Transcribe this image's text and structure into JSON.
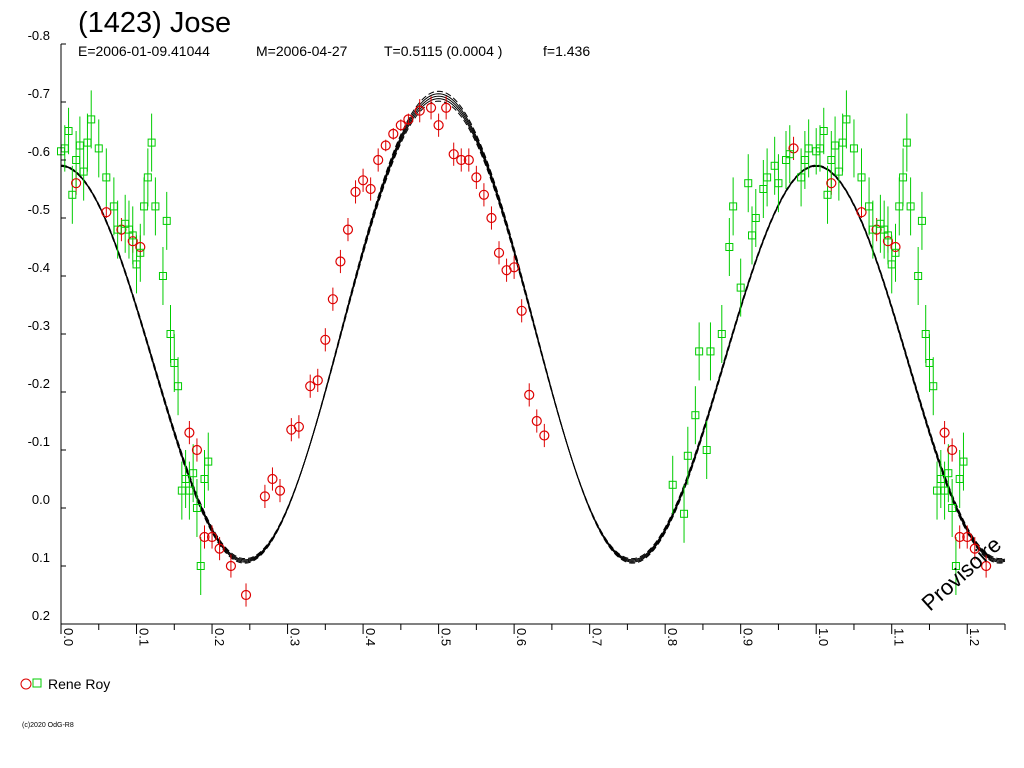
{
  "chart_data": {
    "type": "scatter",
    "title": "(1423) Jose",
    "params": {
      "epoch": "E=2006-01-09.41044",
      "mid": "M=2006-04-27",
      "period": "T=0.5115 (0.0004 )",
      "f": "f=1.436"
    },
    "xlabel": "",
    "ylabel": "",
    "xlim": [
      0.0,
      1.25
    ],
    "ylim": [
      -0.8,
      0.2
    ],
    "y_inverted": true,
    "x_ticks": [
      "0.0",
      "0.1",
      "0.2",
      "0.3",
      "0.4",
      "0.5",
      "0.6",
      "0.7",
      "0.8",
      "0.9",
      "1.0",
      "1.1",
      "1.2"
    ],
    "y_ticks": [
      "-0.8",
      "-0.7",
      "-0.6",
      "-0.5",
      "-0.4",
      "-0.3",
      "-0.2",
      "-0.1",
      "0.0",
      "0.1",
      "0.2"
    ],
    "grid": false,
    "legend_position": "bottom-left",
    "legend_label": "Rene Roy",
    "watermark": "Provisoire",
    "copyright": "(c)2020 OdG-R8",
    "colors": {
      "red_series": "#dd0000",
      "green_series": "#00cc00",
      "fit": "#000000"
    },
    "fit_curve": {
      "mean": -0.28,
      "h1": {
        "amplitude": 0.06,
        "phase_deg": 0
      },
      "h2": {
        "amplitude": 0.37,
        "phase_deg": 180
      },
      "bands": [
        -0.01,
        -0.005,
        0.005,
        0.01
      ]
    },
    "series": [
      {
        "name": "Rene Roy",
        "marker": "circle",
        "color": "#dd0000",
        "points": [
          [
            0.02,
            -0.56,
            0.02
          ],
          [
            0.06,
            -0.51,
            0.01
          ],
          [
            0.08,
            -0.48,
            0.02
          ],
          [
            0.095,
            -0.46,
            0.02
          ],
          [
            0.105,
            -0.45,
            0.02
          ],
          [
            0.17,
            -0.13,
            0.02
          ],
          [
            0.18,
            -0.1,
            0.02
          ],
          [
            0.19,
            0.05,
            0.02
          ],
          [
            0.2,
            0.05,
            0.02
          ],
          [
            0.21,
            0.07,
            0.02
          ],
          [
            0.225,
            0.1,
            0.02
          ],
          [
            0.245,
            0.15,
            0.02
          ],
          [
            0.27,
            -0.02,
            0.02
          ],
          [
            0.28,
            -0.05,
            0.02
          ],
          [
            0.29,
            -0.03,
            0.02
          ],
          [
            0.305,
            -0.135,
            0.02
          ],
          [
            0.315,
            -0.14,
            0.02
          ],
          [
            0.33,
            -0.21,
            0.02
          ],
          [
            0.34,
            -0.22,
            0.02
          ],
          [
            0.35,
            -0.29,
            0.02
          ],
          [
            0.36,
            -0.36,
            0.02
          ],
          [
            0.37,
            -0.425,
            0.02
          ],
          [
            0.38,
            -0.48,
            0.02
          ],
          [
            0.39,
            -0.545,
            0.02
          ],
          [
            0.4,
            -0.565,
            0.02
          ],
          [
            0.41,
            -0.55,
            0.02
          ],
          [
            0.42,
            -0.6,
            0.02
          ],
          [
            0.43,
            -0.625,
            0.01
          ],
          [
            0.44,
            -0.645,
            0.01
          ],
          [
            0.45,
            -0.66,
            0.01
          ],
          [
            0.46,
            -0.67,
            0.01
          ],
          [
            0.475,
            -0.685,
            0.02
          ],
          [
            0.49,
            -0.69,
            0.02
          ],
          [
            0.5,
            -0.66,
            0.02
          ],
          [
            0.51,
            -0.69,
            0.02
          ],
          [
            0.52,
            -0.61,
            0.02
          ],
          [
            0.53,
            -0.6,
            0.02
          ],
          [
            0.54,
            -0.6,
            0.02
          ],
          [
            0.55,
            -0.57,
            0.02
          ],
          [
            0.56,
            -0.54,
            0.02
          ],
          [
            0.57,
            -0.5,
            0.02
          ],
          [
            0.58,
            -0.44,
            0.02
          ],
          [
            0.59,
            -0.41,
            0.02
          ],
          [
            0.6,
            -0.415,
            0.02
          ],
          [
            0.61,
            -0.34,
            0.02
          ],
          [
            0.62,
            -0.195,
            0.02
          ],
          [
            0.63,
            -0.15,
            0.02
          ],
          [
            0.64,
            -0.125,
            0.02
          ],
          [
            0.97,
            -0.62,
            0.02
          ],
          [
            1.02,
            -0.56,
            0.02
          ],
          [
            1.06,
            -0.51,
            0.01
          ],
          [
            1.08,
            -0.48,
            0.02
          ],
          [
            1.095,
            -0.46,
            0.02
          ],
          [
            1.105,
            -0.45,
            0.02
          ],
          [
            1.17,
            -0.13,
            0.02
          ],
          [
            1.18,
            -0.1,
            0.02
          ],
          [
            1.19,
            0.05,
            0.02
          ],
          [
            1.2,
            0.05,
            0.02
          ],
          [
            1.21,
            0.07,
            0.02
          ],
          [
            1.225,
            0.1,
            0.02
          ]
        ]
      },
      {
        "name": "Rene Roy",
        "marker": "square",
        "color": "#00cc00",
        "points": [
          [
            0.0,
            -0.615,
            0.04
          ],
          [
            0.005,
            -0.62,
            0.04
          ],
          [
            0.01,
            -0.65,
            0.04
          ],
          [
            0.015,
            -0.54,
            0.05
          ],
          [
            0.02,
            -0.6,
            0.05
          ],
          [
            0.025,
            -0.625,
            0.05
          ],
          [
            0.03,
            -0.58,
            0.05
          ],
          [
            0.035,
            -0.63,
            0.05
          ],
          [
            0.04,
            -0.67,
            0.05
          ],
          [
            0.05,
            -0.62,
            0.05
          ],
          [
            0.06,
            -0.57,
            0.05
          ],
          [
            0.07,
            -0.52,
            0.05
          ],
          [
            0.075,
            -0.48,
            0.05
          ],
          [
            0.085,
            -0.49,
            0.05
          ],
          [
            0.09,
            -0.48,
            0.05
          ],
          [
            0.095,
            -0.47,
            0.05
          ],
          [
            0.1,
            -0.42,
            0.05
          ],
          [
            0.105,
            -0.44,
            0.05
          ],
          [
            0.11,
            -0.52,
            0.05
          ],
          [
            0.115,
            -0.57,
            0.05
          ],
          [
            0.12,
            -0.63,
            0.05
          ],
          [
            0.125,
            -0.52,
            0.05
          ],
          [
            0.135,
            -0.4,
            0.05
          ],
          [
            0.14,
            -0.495,
            0.05
          ],
          [
            0.145,
            -0.3,
            0.05
          ],
          [
            0.15,
            -0.25,
            0.05
          ],
          [
            0.155,
            -0.21,
            0.05
          ],
          [
            0.16,
            -0.03,
            0.05
          ],
          [
            0.165,
            -0.05,
            0.05
          ],
          [
            0.17,
            -0.03,
            0.05
          ],
          [
            0.175,
            -0.06,
            0.05
          ],
          [
            0.18,
            0.0,
            0.05
          ],
          [
            0.185,
            0.1,
            0.05
          ],
          [
            0.19,
            -0.05,
            0.05
          ],
          [
            0.195,
            -0.08,
            0.05
          ],
          [
            0.81,
            -0.04,
            0.05
          ],
          [
            0.825,
            0.01,
            0.05
          ],
          [
            0.83,
            -0.09,
            0.05
          ],
          [
            0.84,
            -0.16,
            0.05
          ],
          [
            0.845,
            -0.27,
            0.05
          ],
          [
            0.855,
            -0.1,
            0.05
          ],
          [
            0.86,
            -0.27,
            0.05
          ],
          [
            0.875,
            -0.3,
            0.05
          ],
          [
            0.885,
            -0.45,
            0.05
          ],
          [
            0.89,
            -0.52,
            0.05
          ],
          [
            0.9,
            -0.38,
            0.05
          ],
          [
            0.91,
            -0.56,
            0.05
          ],
          [
            0.915,
            -0.47,
            0.05
          ],
          [
            0.92,
            -0.5,
            0.05
          ],
          [
            0.93,
            -0.55,
            0.05
          ],
          [
            0.935,
            -0.57,
            0.05
          ],
          [
            0.945,
            -0.59,
            0.05
          ],
          [
            0.95,
            -0.56,
            0.05
          ],
          [
            0.96,
            -0.6,
            0.05
          ],
          [
            0.965,
            -0.61,
            0.05
          ],
          [
            0.98,
            -0.57,
            0.05
          ],
          [
            0.985,
            -0.6,
            0.05
          ],
          [
            0.99,
            -0.62,
            0.05
          ],
          [
            1.0,
            -0.615,
            0.04
          ],
          [
            1.005,
            -0.62,
            0.04
          ],
          [
            1.01,
            -0.65,
            0.04
          ],
          [
            1.015,
            -0.54,
            0.05
          ],
          [
            1.02,
            -0.6,
            0.05
          ],
          [
            1.025,
            -0.625,
            0.05
          ],
          [
            1.03,
            -0.58,
            0.05
          ],
          [
            1.035,
            -0.63,
            0.05
          ],
          [
            1.04,
            -0.67,
            0.05
          ],
          [
            1.05,
            -0.62,
            0.05
          ],
          [
            1.06,
            -0.57,
            0.05
          ],
          [
            1.07,
            -0.52,
            0.05
          ],
          [
            1.075,
            -0.48,
            0.05
          ],
          [
            1.085,
            -0.49,
            0.05
          ],
          [
            1.09,
            -0.48,
            0.05
          ],
          [
            1.095,
            -0.47,
            0.05
          ],
          [
            1.1,
            -0.42,
            0.05
          ],
          [
            1.105,
            -0.44,
            0.05
          ],
          [
            1.11,
            -0.52,
            0.05
          ],
          [
            1.115,
            -0.57,
            0.05
          ],
          [
            1.12,
            -0.63,
            0.05
          ],
          [
            1.125,
            -0.52,
            0.05
          ],
          [
            1.135,
            -0.4,
            0.05
          ],
          [
            1.14,
            -0.495,
            0.05
          ],
          [
            1.145,
            -0.3,
            0.05
          ],
          [
            1.15,
            -0.25,
            0.05
          ],
          [
            1.155,
            -0.21,
            0.05
          ],
          [
            1.16,
            -0.03,
            0.05
          ],
          [
            1.165,
            -0.05,
            0.05
          ],
          [
            1.17,
            -0.03,
            0.05
          ],
          [
            1.175,
            -0.06,
            0.05
          ],
          [
            1.18,
            0.0,
            0.05
          ],
          [
            1.185,
            0.1,
            0.05
          ],
          [
            1.19,
            -0.05,
            0.05
          ],
          [
            1.195,
            -0.08,
            0.05
          ]
        ]
      }
    ]
  }
}
